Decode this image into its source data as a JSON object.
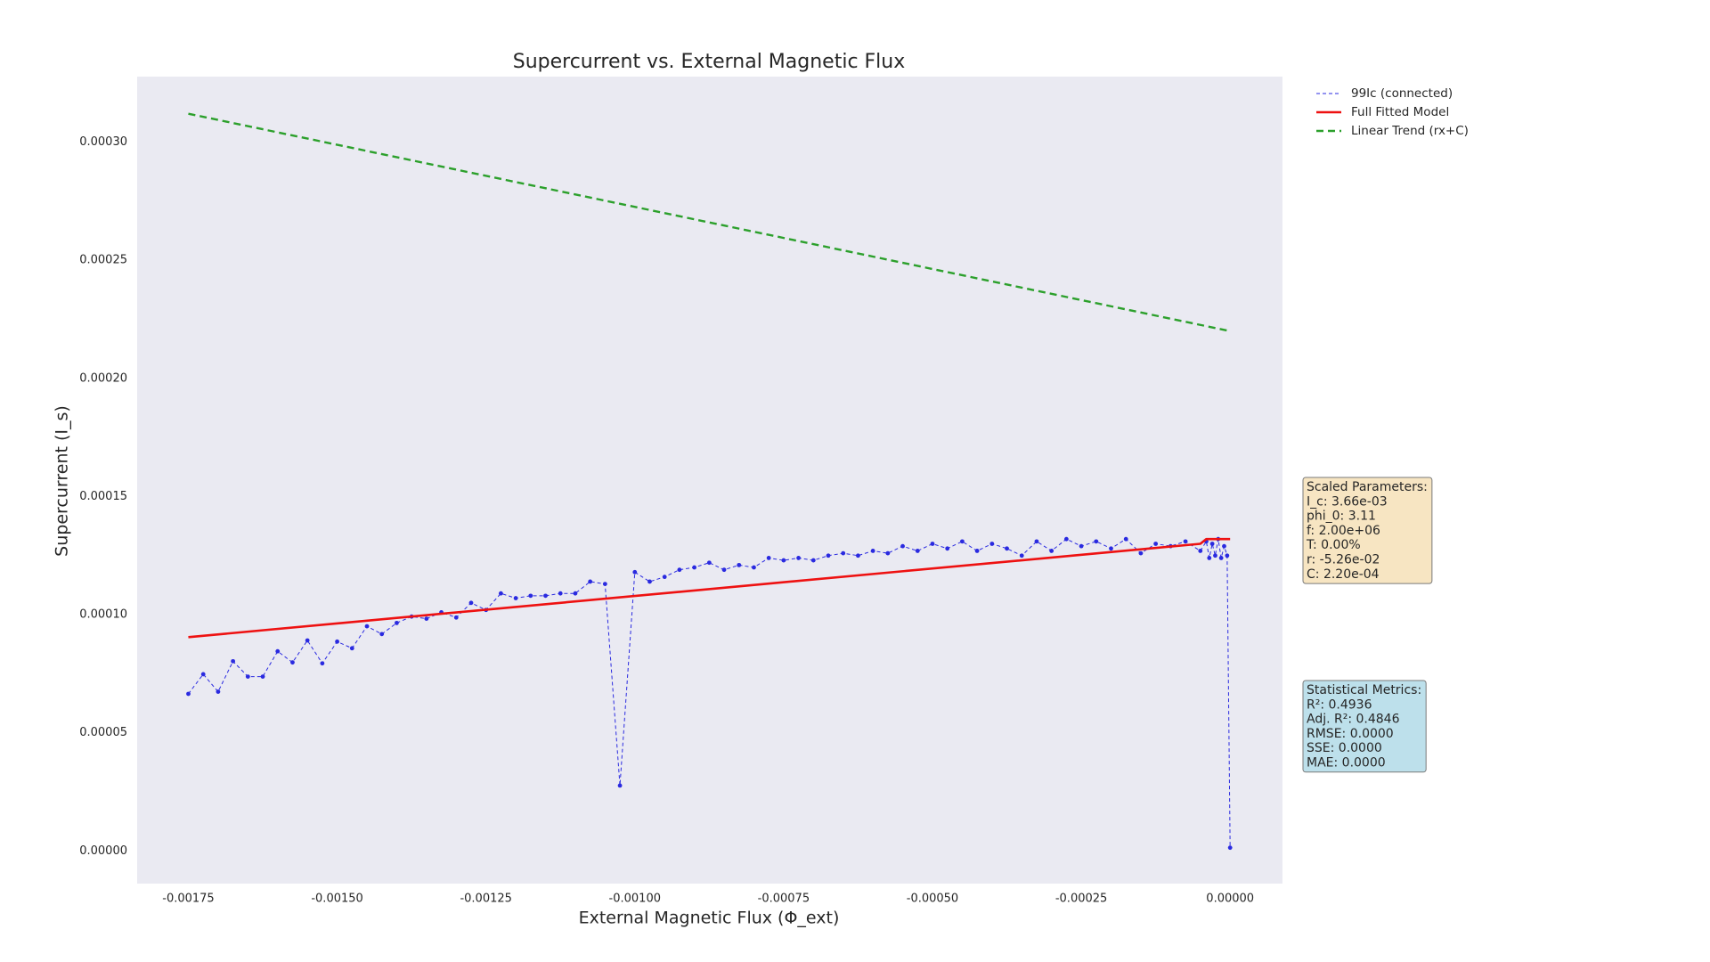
{
  "chart_data": {
    "type": "line",
    "title": "Supercurrent vs. External Magnetic Flux",
    "x_label": "External Magnetic Flux (Φ_ext)",
    "y_label": "Supercurrent (I_s)",
    "xlim": [
      -0.001836,
      8.8e-05
    ],
    "ylim": [
      -1.38e-05,
      0.0003277
    ],
    "xticks": [
      -0.00175,
      {
        "value": -0.0015,
        "label": "-0.00150"
      },
      -0.00125,
      {
        "value": -0.001,
        "label": "-0.00100"
      },
      -0.00075,
      {
        "value": -0.0005,
        "label": "-0.00050"
      },
      -0.00025,
      {
        "value": 0,
        "label": "0.00000"
      }
    ],
    "yticks": [
      {
        "value": 0,
        "label": "0.00000"
      },
      5e-05,
      {
        "value": 0.0001,
        "label": "0.00010"
      },
      0.00015,
      {
        "value": 0.0002,
        "label": "0.00020"
      },
      0.00025,
      {
        "value": 0.0003,
        "label": "0.00030"
      }
    ],
    "grid": false,
    "background": "#eaeaf2",
    "legend": "outside-upper-right",
    "series": [
      {
        "name": "99Ic (connected)",
        "color": "#2a2ae0",
        "linestyle": "dashed",
        "linewidth": 1,
        "marker": true,
        "x": [
          -0.00175,
          -0.001725,
          -0.0017,
          -0.001675,
          -0.00165,
          -0.001625,
          -0.0016,
          -0.001575,
          -0.00155,
          -0.001525,
          -0.0015,
          -0.001475,
          -0.00145,
          -0.001425,
          -0.0014,
          -0.001375,
          -0.00135,
          -0.001325,
          -0.0013,
          -0.001275,
          -0.00125,
          -0.001225,
          -0.0012,
          -0.001175,
          -0.00115,
          -0.001125,
          -0.0011,
          -0.001075,
          -0.00105,
          -0.001025,
          -0.001,
          -0.000975,
          -0.00095,
          -0.000925,
          -0.0009,
          -0.000875,
          -0.00085,
          -0.000825,
          -0.0008,
          -0.000775,
          -0.00075,
          -0.000725,
          -0.0007,
          -0.000675,
          -0.00065,
          -0.000625,
          -0.0006,
          -0.000575,
          -0.00055,
          -0.000525,
          -0.0005,
          -0.000475,
          -0.00045,
          -0.000425,
          -0.0004,
          -0.000375,
          -0.00035,
          -0.000325,
          -0.0003,
          -0.000275,
          -0.00025,
          -0.000225,
          -0.0002,
          -0.000175,
          -0.00015,
          -0.000125,
          -0.0001,
          -7.5e-05,
          -5e-05,
          -4e-05,
          -3.5e-05,
          -3e-05,
          -2.5e-05,
          -2e-05,
          -1.5e-05,
          -1e-05,
          -5e-06,
          0
        ],
        "values": [
          6.65e-05,
          7.48e-05,
          6.74e-05,
          8.03e-05,
          7.38e-05,
          7.38e-05,
          8.45e-05,
          7.98e-05,
          8.91e-05,
          7.94e-05,
          8.86e-05,
          8.58e-05,
          9.51e-05,
          9.18e-05,
          9.65e-05,
          9.92e-05,
          9.83e-05,
          0.000101,
          9.88e-05,
          0.000105,
          0.000102,
          0.000109,
          0.000107,
          0.000108,
          0.000108,
          0.000109,
          0.000109,
          0.000114,
          0.000113,
          2.77e-05,
          0.000118,
          0.000114,
          0.000116,
          0.000119,
          0.00012,
          0.000122,
          0.000119,
          0.000121,
          0.00012,
          0.000124,
          0.000123,
          0.000124,
          0.000123,
          0.000125,
          0.000126,
          0.000125,
          0.000127,
          0.000126,
          0.000129,
          0.000127,
          0.00013,
          0.000128,
          0.000131,
          0.000127,
          0.00013,
          0.000128,
          0.000125,
          0.000131,
          0.000127,
          0.000132,
          0.000129,
          0.000131,
          0.000128,
          0.000132,
          0.000126,
          0.00013,
          0.000129,
          0.000131,
          0.000127,
          0.000131,
          0.000124,
          0.00013,
          0.000125,
          0.000132,
          0.000124,
          0.000129,
          0.000125,
          1.4e-06
        ]
      },
      {
        "name": "Full Fitted Model",
        "color": "#ee1111",
        "linestyle": "solid",
        "linewidth": 2.6,
        "marker": false,
        "x": [
          -0.00175,
          -5e-05,
          -4e-05,
          0
        ],
        "values": [
          9.05e-05,
          0.00013,
          0.000132,
          0.000132
        ]
      },
      {
        "name": "Linear Trend (rx+C)",
        "color": "#2ca02c",
        "linestyle": "dashed",
        "linewidth": 2.4,
        "marker": false,
        "x": [
          -0.00175,
          0
        ],
        "values": [
          0.000312,
          0.00022
        ]
      }
    ],
    "annotations": [
      {
        "color": "#f5deb3",
        "lines": [
          "Scaled Parameters:",
          "I_c: 3.66e-03",
          "phi_0: 3.11",
          "f: 2.00e+06",
          "T: 0.00%",
          "r: -5.26e-02",
          "C: 2.20e-04"
        ]
      },
      {
        "color": "#add8e6",
        "lines": [
          "Statistical Metrics:",
          "R²: 0.4936",
          "Adj. R²: 0.4846",
          "RMSE: 0.0000",
          "SSE: 0.0000",
          "MAE: 0.0000"
        ]
      }
    ]
  }
}
